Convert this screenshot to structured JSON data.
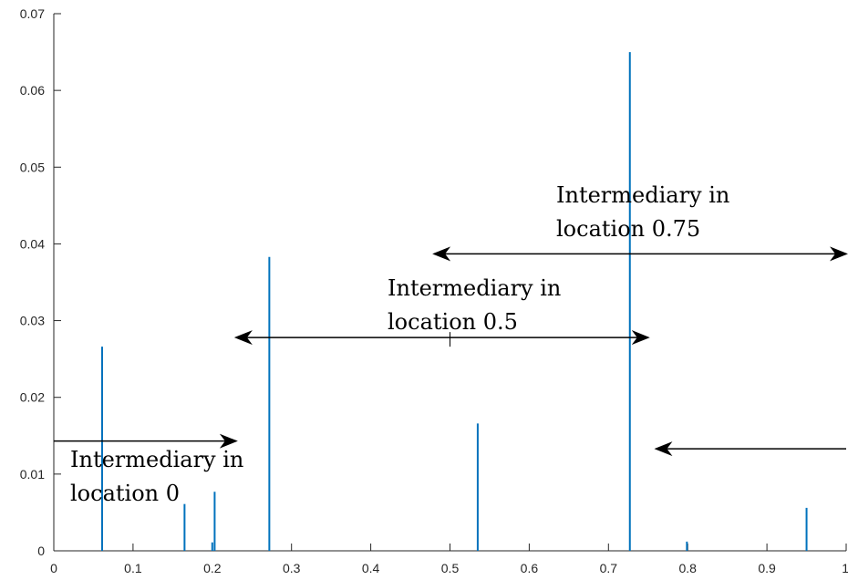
{
  "chart_data": {
    "type": "bar",
    "title": "",
    "xlabel": "",
    "ylabel": "",
    "xlim": [
      0,
      1
    ],
    "ylim": [
      0,
      0.07
    ],
    "grid": false,
    "legend": "none",
    "x_ticks": [
      "0",
      "0.1",
      "0.2",
      "0.3",
      "0.4",
      "0.5",
      "0.6",
      "0.7",
      "0.8",
      "0.9",
      "1"
    ],
    "y_ticks": [
      "0",
      "0.01",
      "0.02",
      "0.03",
      "0.04",
      "0.05",
      "0.06",
      "0.07"
    ],
    "series": [
      {
        "color": "#0072bd",
        "points": [
          {
            "x": 0.061,
            "y": 0.0266
          },
          {
            "x": 0.165,
            "y": 0.0061
          },
          {
            "x": 0.2,
            "y": 0.0011
          },
          {
            "x": 0.203,
            "y": 0.0077
          },
          {
            "x": 0.272,
            "y": 0.0383
          },
          {
            "x": 0.535,
            "y": 0.0166
          },
          {
            "x": 0.727,
            "y": 0.065
          },
          {
            "x": 0.799,
            "y": 0.0012
          },
          {
            "x": 0.95,
            "y": 0.0056
          }
        ]
      }
    ],
    "annotations": [
      {
        "lines": [
          "Intermediary in",
          "location 0"
        ]
      },
      {
        "lines": [
          "Intermediary in",
          "location 0.5"
        ]
      },
      {
        "lines": [
          "Intermediary in",
          "location 0.75"
        ]
      }
    ],
    "arrows": [
      {
        "from_x": 0.0,
        "to_x": 0.23,
        "y": 0.0143,
        "heads": "end"
      },
      {
        "from_x": 0.23,
        "to_x": 0.75,
        "y": 0.0278,
        "heads": "both"
      },
      {
        "from_x": 0.48,
        "to_x": 1.0,
        "y": 0.0387,
        "heads": "both"
      },
      {
        "from_x": 1.0,
        "to_x": 0.76,
        "y": 0.0133,
        "heads": "end"
      }
    ]
  }
}
